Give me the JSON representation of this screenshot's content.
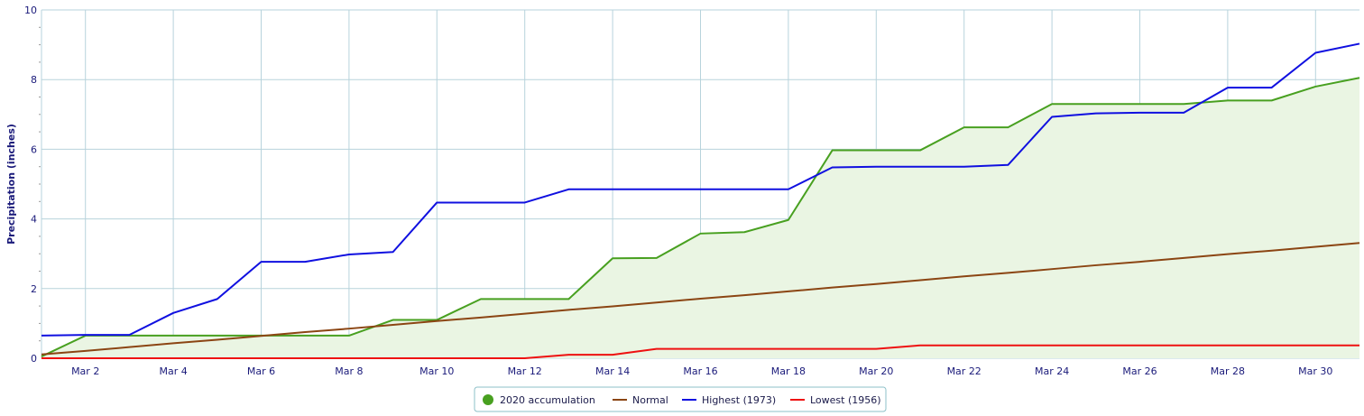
{
  "chart_data": {
    "type": "line",
    "ylabel": "Precipitation (inches)",
    "ylim": [
      0,
      10
    ],
    "y_ticks": [
      "0",
      "2",
      "4",
      "6",
      "8",
      "10"
    ],
    "x_range": [
      1,
      31
    ],
    "x_ticks": [
      {
        "day": 2,
        "label": "Mar 2"
      },
      {
        "day": 4,
        "label": "Mar 4"
      },
      {
        "day": 6,
        "label": "Mar 6"
      },
      {
        "day": 8,
        "label": "Mar 8"
      },
      {
        "day": 10,
        "label": "Mar 10"
      },
      {
        "day": 12,
        "label": "Mar 12"
      },
      {
        "day": 14,
        "label": "Mar 14"
      },
      {
        "day": 16,
        "label": "Mar 16"
      },
      {
        "day": 18,
        "label": "Mar 18"
      },
      {
        "day": 20,
        "label": "Mar 20"
      },
      {
        "day": 22,
        "label": "Mar 22"
      },
      {
        "day": 24,
        "label": "Mar 24"
      },
      {
        "day": 26,
        "label": "Mar 26"
      },
      {
        "day": 28,
        "label": "Mar 28"
      },
      {
        "day": 30,
        "label": "Mar 30"
      }
    ],
    "grid": true,
    "legend_position": "bottom-center",
    "x": [
      1,
      2,
      3,
      4,
      5,
      6,
      7,
      8,
      9,
      10,
      11,
      12,
      13,
      14,
      15,
      16,
      17,
      18,
      19,
      20,
      21,
      22,
      23,
      24,
      25,
      26,
      27,
      28,
      29,
      30,
      31
    ],
    "series": [
      {
        "name": "2020 accumulation",
        "color": "#48a020",
        "fill": "#eaf5e3",
        "area": true,
        "marker": "circle",
        "values": [
          0.05,
          0.65,
          0.65,
          0.65,
          0.65,
          0.65,
          0.65,
          0.65,
          1.1,
          1.1,
          1.7,
          1.7,
          1.7,
          2.87,
          2.88,
          3.58,
          3.62,
          3.97,
          5.97,
          5.97,
          5.97,
          6.63,
          6.63,
          7.3,
          7.3,
          7.3,
          7.3,
          7.4,
          7.4,
          7.8,
          8.05
        ]
      },
      {
        "name": "Normal",
        "color": "#8b4513",
        "values": [
          0.11,
          0.21,
          0.32,
          0.43,
          0.53,
          0.64,
          0.75,
          0.85,
          0.96,
          1.07,
          1.17,
          1.28,
          1.39,
          1.49,
          1.6,
          1.71,
          1.81,
          1.92,
          2.03,
          2.13,
          2.24,
          2.35,
          2.45,
          2.56,
          2.67,
          2.77,
          2.88,
          2.99,
          3.09,
          3.2,
          3.31
        ]
      },
      {
        "name": "Highest (1973)",
        "color": "#1010e0",
        "values": [
          0.65,
          0.67,
          0.67,
          1.3,
          1.7,
          2.77,
          2.77,
          2.98,
          3.05,
          4.47,
          4.47,
          4.47,
          4.85,
          4.85,
          4.85,
          4.85,
          4.85,
          4.85,
          5.48,
          5.5,
          5.5,
          5.5,
          5.55,
          6.93,
          7.03,
          7.05,
          7.05,
          7.77,
          7.77,
          8.77,
          9.03
        ]
      },
      {
        "name": "Lowest (1956)",
        "color": "#ee1111",
        "values": [
          0,
          0,
          0,
          0,
          0,
          0,
          0,
          0,
          0,
          0,
          0,
          0,
          0.1,
          0.1,
          0.27,
          0.27,
          0.27,
          0.27,
          0.27,
          0.27,
          0.37,
          0.37,
          0.37,
          0.37,
          0.37,
          0.37,
          0.37,
          0.37,
          0.37,
          0.37,
          0.37
        ]
      }
    ]
  }
}
